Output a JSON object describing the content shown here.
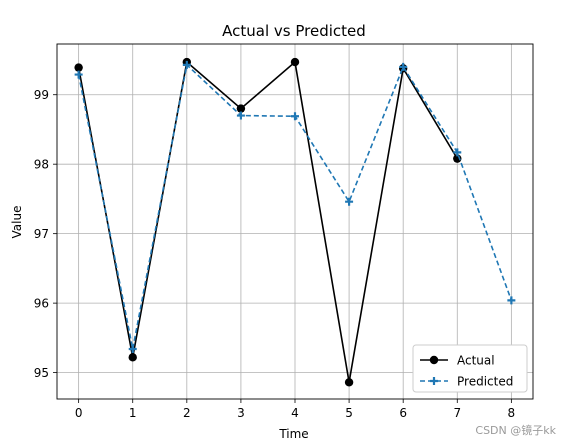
{
  "chart_data": {
    "type": "line",
    "title": "Actual vs Predicted",
    "xlabel": "Time",
    "ylabel": "Value",
    "xlim": [
      -0.4,
      8.4
    ],
    "ylim": [
      94.62,
      99.73
    ],
    "xticks": [
      0,
      1,
      2,
      3,
      4,
      5,
      6,
      7,
      8
    ],
    "yticks": [
      95,
      96,
      97,
      98,
      99
    ],
    "grid": true,
    "legend_position": "lower-right",
    "series": [
      {
        "name": "Actual",
        "style": "solid",
        "marker": "circle",
        "color": "#000000",
        "x": [
          0,
          1,
          2,
          3,
          4,
          5,
          6,
          7
        ],
        "values": [
          99.39,
          95.22,
          99.47,
          98.8,
          99.47,
          94.86,
          99.38,
          98.08
        ]
      },
      {
        "name": "Predicted",
        "style": "dashed",
        "marker": "plus",
        "color": "#1f77b4",
        "x": [
          0,
          1,
          2,
          3,
          4,
          5,
          6,
          7,
          8
        ],
        "values": [
          99.29,
          95.34,
          99.43,
          98.7,
          98.69,
          97.46,
          99.4,
          98.17,
          96.04
        ]
      }
    ]
  },
  "watermark": "CSDN @镜子kk"
}
